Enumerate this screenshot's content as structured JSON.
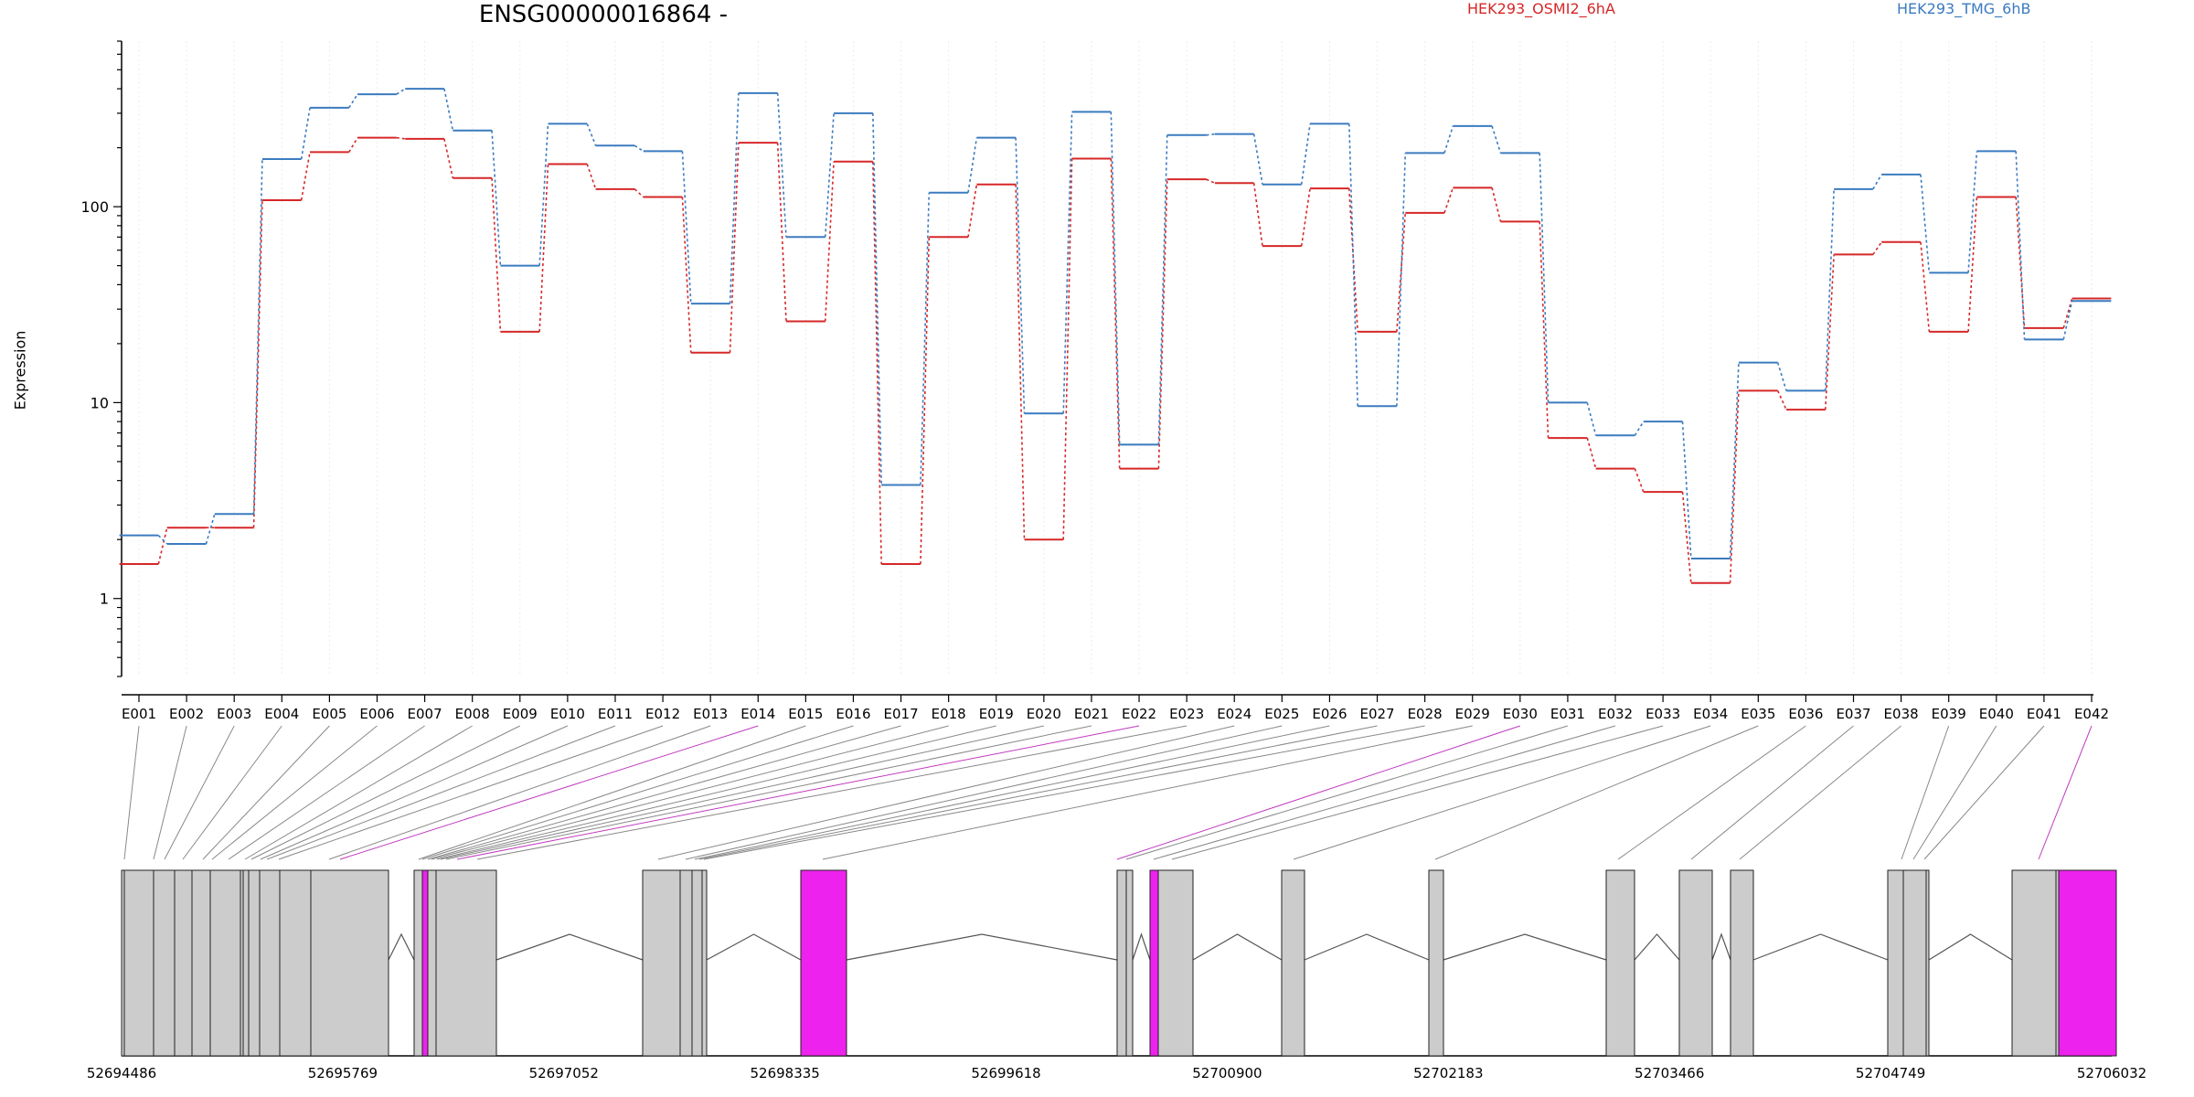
{
  "chart_data": {
    "type": "line",
    "title": "ENSG00000016864 -",
    "ylabel": "Expression",
    "yscale": "log",
    "ylim": [
      0.4,
      700
    ],
    "yticks": [
      1,
      10,
      100
    ],
    "ytick_labels": [
      "1",
      "10",
      "100"
    ],
    "grid": "vertical",
    "legend_position": "top",
    "categories": [
      "E001",
      "E002",
      "E003",
      "E004",
      "E005",
      "E006",
      "E007",
      "E008",
      "E009",
      "E010",
      "E011",
      "E012",
      "E013",
      "E014",
      "E015",
      "E016",
      "E017",
      "E018",
      "E019",
      "E020",
      "E021",
      "E022",
      "E023",
      "E024",
      "E025",
      "E026",
      "E027",
      "E028",
      "E029",
      "E030",
      "E031",
      "E032",
      "E033",
      "E034",
      "E035",
      "E036",
      "E037",
      "E038",
      "E039",
      "E040",
      "E041",
      "E042"
    ],
    "series": [
      {
        "name": "HEK293_OSMI2_6hA",
        "color": "#d62728",
        "values": [
          1.5,
          2.3,
          2.3,
          108,
          190,
          225,
          222,
          140,
          23,
          165,
          123,
          112,
          18,
          212,
          26,
          170,
          1.5,
          70,
          130,
          2.0,
          176,
          4.6,
          138,
          132,
          63,
          124,
          23,
          93,
          125,
          84,
          6.6,
          4.6,
          3.5,
          1.2,
          11.5,
          9.2,
          57,
          66,
          23,
          112,
          24,
          34
        ]
      },
      {
        "name": "HEK293_TMG_6hB",
        "color": "#3b7bbf",
        "values": [
          2.1,
          1.9,
          2.7,
          175,
          320,
          375,
          400,
          245,
          50,
          265,
          205,
          192,
          32,
          380,
          70,
          300,
          3.8,
          118,
          225,
          8.8,
          305,
          6.1,
          232,
          235,
          130,
          265,
          9.6,
          188,
          258,
          188,
          10,
          6.8,
          8.0,
          1.6,
          16,
          11.5,
          123,
          146,
          46,
          192,
          21,
          33
        ]
      }
    ],
    "gene_model": {
      "coordinate_labels": [
        "52694486",
        "52695769",
        "52697052",
        "52698335",
        "52699618",
        "52700900",
        "52702183",
        "52703466",
        "52704749",
        "52706032"
      ],
      "highlighted_exons": [
        "E014",
        "E022",
        "E030",
        "E042"
      ],
      "highlight_color": "#ee22ee",
      "exon_color": "#cccccc"
    }
  }
}
